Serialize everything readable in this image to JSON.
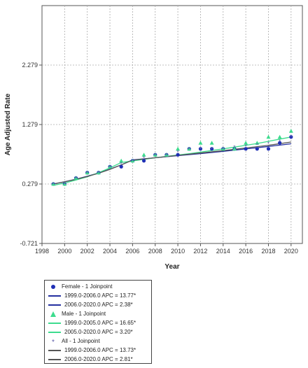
{
  "chart_data": {
    "type": "scatter",
    "title": "",
    "xlabel": "Year",
    "ylabel": "Age Adjusted Rate",
    "xlim": [
      1998,
      2021
    ],
    "ylim": [
      -0.721,
      3.279
    ],
    "x_ticks": [
      1998,
      2000,
      2002,
      2004,
      2006,
      2008,
      2010,
      2012,
      2014,
      2016,
      2018,
      2020
    ],
    "y_ticks": [
      -0.721,
      0.279,
      1.279,
      2.279
    ],
    "y_tick_labels": [
      "-0.721",
      "0.279",
      "1.279",
      "2.279"
    ],
    "grid": true,
    "legend_position": "below",
    "years": [
      1999,
      2000,
      2001,
      2002,
      2003,
      2004,
      2005,
      2006,
      2007,
      2008,
      2009,
      2010,
      2011,
      2012,
      2013,
      2014,
      2015,
      2016,
      2017,
      2018,
      2019,
      2020
    ],
    "series": [
      {
        "name": "Female - 1 Joinpoint",
        "marker": "circle",
        "color": "#1f2fb5",
        "values": [
          0.28,
          0.28,
          0.38,
          0.47,
          0.47,
          0.57,
          0.57,
          0.67,
          0.67,
          0.77,
          0.77,
          0.77,
          0.87,
          0.87,
          0.87,
          0.87,
          0.87,
          0.87,
          0.87,
          0.87,
          0.97,
          1.07
        ],
        "fit": [
          {
            "label": "1999.0-2006.0 APC = 13.77*",
            "color": "#2430a0",
            "x": [
              1999,
              2000,
              2001,
              2002,
              2003,
              2004,
              2005,
              2006
            ],
            "y": [
              0.279,
              0.317,
              0.36,
              0.41,
              0.465,
              0.53,
              0.6,
              0.685
            ]
          },
          {
            "label": "2006.0-2020.0 APC =  2.38*",
            "color": "#2430a0",
            "x": [
              2006,
              2008,
              2010,
              2012,
              2014,
              2016,
              2018,
              2020
            ],
            "y": [
              0.685,
              0.72,
              0.755,
              0.79,
              0.828,
              0.868,
              0.91,
              0.955
            ]
          }
        ]
      },
      {
        "name": "Male - 1 Joinpoint",
        "marker": "triangle",
        "color": "#3ddc8e",
        "values": [
          0.28,
          0.28,
          0.38,
          0.47,
          0.47,
          0.57,
          0.67,
          0.67,
          0.77,
          0.77,
          0.77,
          0.87,
          0.87,
          0.97,
          0.97,
          0.87,
          0.87,
          0.97,
          0.97,
          1.07,
          1.07,
          1.17
        ],
        "fit": [
          {
            "label": "1999.0-2005.0 APC = 16.65*",
            "color": "#3ddc8e",
            "x": [
              1999,
              2000,
              2001,
              2002,
              2003,
              2004,
              2005
            ],
            "y": [
              0.255,
              0.295,
              0.345,
              0.4,
              0.47,
              0.55,
              0.64
            ]
          },
          {
            "label": "2005.0-2020.0 APC =  3.20*",
            "color": "#3ddc8e",
            "x": [
              2005,
              2008,
              2011,
              2014,
              2017,
              2020
            ],
            "y": [
              0.64,
              0.72,
              0.79,
              0.87,
              0.96,
              1.07
            ]
          }
        ]
      },
      {
        "name": "All - 1 Joinpoint",
        "marker": "star",
        "color": "#5a5aa8",
        "values": [
          0.28,
          0.28,
          0.38,
          0.47,
          0.47,
          0.57,
          0.62,
          0.67,
          0.72,
          0.77,
          0.77,
          0.82,
          0.87,
          0.87,
          0.87,
          0.87,
          0.9,
          0.92,
          0.94,
          0.97,
          1.0,
          1.07
        ],
        "fit": [
          {
            "label": "1999.0-2006.0 APC = 13.73*",
            "color": "#555555",
            "x": [
              1999,
              2000,
              2001,
              2002,
              2003,
              2004,
              2005,
              2006
            ],
            "y": [
              0.279,
              0.315,
              0.358,
              0.405,
              0.46,
              0.525,
              0.6,
              0.68
            ]
          },
          {
            "label": "2006.0-2020.0 APC =  2.81*",
            "color": "#555555",
            "x": [
              2006,
              2008,
              2010,
              2012,
              2014,
              2016,
              2018,
              2020
            ],
            "y": [
              0.68,
              0.72,
              0.76,
              0.8,
              0.84,
              0.885,
              0.93,
              0.985
            ]
          }
        ]
      }
    ]
  }
}
